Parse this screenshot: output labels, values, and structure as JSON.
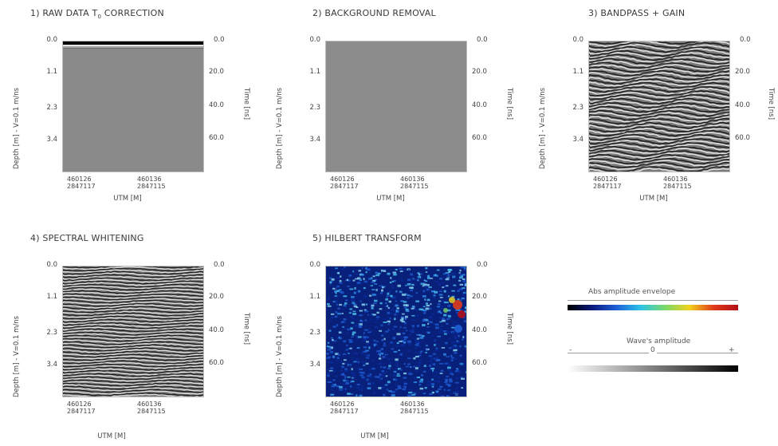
{
  "figure": {
    "panels": [
      {
        "title": "1) RAW DATA T",
        "title_sub": "0",
        "title_tail": " CORRECTION",
        "left_tick_labels": [
          "0.0",
          "1.1",
          "2.3",
          "3.4"
        ],
        "right_tick_labels": [
          "0.0",
          "20.0",
          "40.0",
          "60.0"
        ],
        "left_axis_label": "Depth [m] - V=0.1 m/ns",
        "right_axis_label": "Time [ns]",
        "x_ticks": [
          {
            "easting": "460126",
            "northing": "2847117"
          },
          {
            "easting": "460136",
            "northing": "2847115"
          }
        ],
        "x_axis_label": "UTM [M]"
      },
      {
        "title": "2) BACKGROUND REMOVAL",
        "left_tick_labels": [
          "0.0",
          "1.1",
          "2.3",
          "3.4"
        ],
        "right_tick_labels": [
          "0.0",
          "20.0",
          "40.0",
          "60.0"
        ],
        "left_axis_label": "Depth [m] - V=0.1 m/ns",
        "right_axis_label": "Time [ns]",
        "x_ticks": [
          {
            "easting": "460126",
            "northing": "2847117"
          },
          {
            "easting": "460136",
            "northing": "2847115"
          }
        ],
        "x_axis_label": "UTM [M]"
      },
      {
        "title": "3) BANDPASS + GAIN",
        "left_tick_labels": [
          "0.0",
          "1.1",
          "2.3",
          "3.4"
        ],
        "right_tick_labels": [
          "0.0",
          "20.0",
          "40.0",
          "60.0"
        ],
        "left_axis_label": "Depth [m] - V=0.1 m/ns",
        "right_axis_label": "Time [ns]",
        "x_ticks": [
          {
            "easting": "460126",
            "northing": "2847117"
          },
          {
            "easting": "460136",
            "northing": "2847115"
          }
        ],
        "x_axis_label": "UTM [M]"
      },
      {
        "title": "4) SPECTRAL WHITENING",
        "left_tick_labels": [
          "0.0",
          "1.1",
          "2.3",
          "3.4"
        ],
        "right_tick_labels": [
          "0.0",
          "20.0",
          "40.0",
          "60.0"
        ],
        "left_axis_label": "Depth [m] - V=0.1 m/ns",
        "right_axis_label": "Time [ns]",
        "x_ticks": [
          {
            "easting": "460126",
            "northing": "2847117"
          },
          {
            "easting": "460136",
            "northing": "2847115"
          }
        ],
        "x_axis_label": "UTM [M]"
      },
      {
        "title": "5) HILBERT TRANSFORM",
        "left_tick_labels": [
          "0.0",
          "1.1",
          "2.3",
          "3.4"
        ],
        "right_tick_labels": [
          "0.0",
          "20.0",
          "40.0",
          "60.0"
        ],
        "left_axis_label": "Depth [m] - V=0.1 m/ns",
        "right_axis_label": "Time [ns]",
        "x_ticks": [
          {
            "easting": "460126",
            "northing": "2847117"
          },
          {
            "easting": "460136",
            "northing": "2847115"
          }
        ],
        "x_axis_label": "UTM [M]"
      }
    ],
    "legend": {
      "envelope_label": "Abs amplitude envelope",
      "amplitude_label": "Wave's amplitude",
      "amplitude_minus": "-",
      "amplitude_zero": "0",
      "amplitude_plus": "+",
      "envelope_colors": [
        "#000000",
        "#0a1a7a",
        "#1f5fd6",
        "#2ec4e6",
        "#7ad86a",
        "#f2d21c",
        "#e03a1a",
        "#b0101a"
      ],
      "amplitude_colors": [
        "#ffffff",
        "#000000"
      ]
    },
    "colors": {
      "raw_gray": "#8a8a8a",
      "bg_removed_gray": "#8c8c8c"
    }
  }
}
